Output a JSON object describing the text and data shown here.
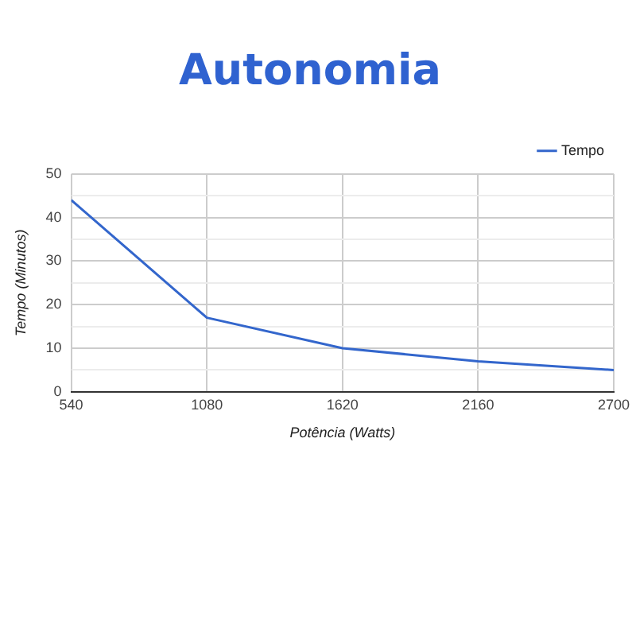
{
  "chart_data": {
    "type": "line",
    "title": "Autonomia",
    "xlabel": "Potência (Watts)",
    "ylabel": "Tempo (Minutos)",
    "x": [
      540,
      1080,
      1620,
      2160,
      2700
    ],
    "series": [
      {
        "name": "Tempo",
        "color": "#3366cc",
        "values": [
          44,
          17,
          10,
          7,
          5
        ]
      }
    ],
    "xlim": [
      540,
      2700
    ],
    "xticks": [
      540,
      1080,
      1620,
      2160,
      2700
    ],
    "ylim": [
      0,
      50
    ],
    "yticks": [
      0,
      {
        "value": 5,
        "label": null
      },
      10,
      {
        "value": 15,
        "label": null
      },
      20,
      {
        "value": 25,
        "label": null
      },
      30,
      {
        "value": 35,
        "label": null
      },
      40,
      {
        "value": 45,
        "label": null
      },
      50
    ],
    "grid": true,
    "legend": "top right",
    "marker": "none",
    "line_style": "solid"
  }
}
